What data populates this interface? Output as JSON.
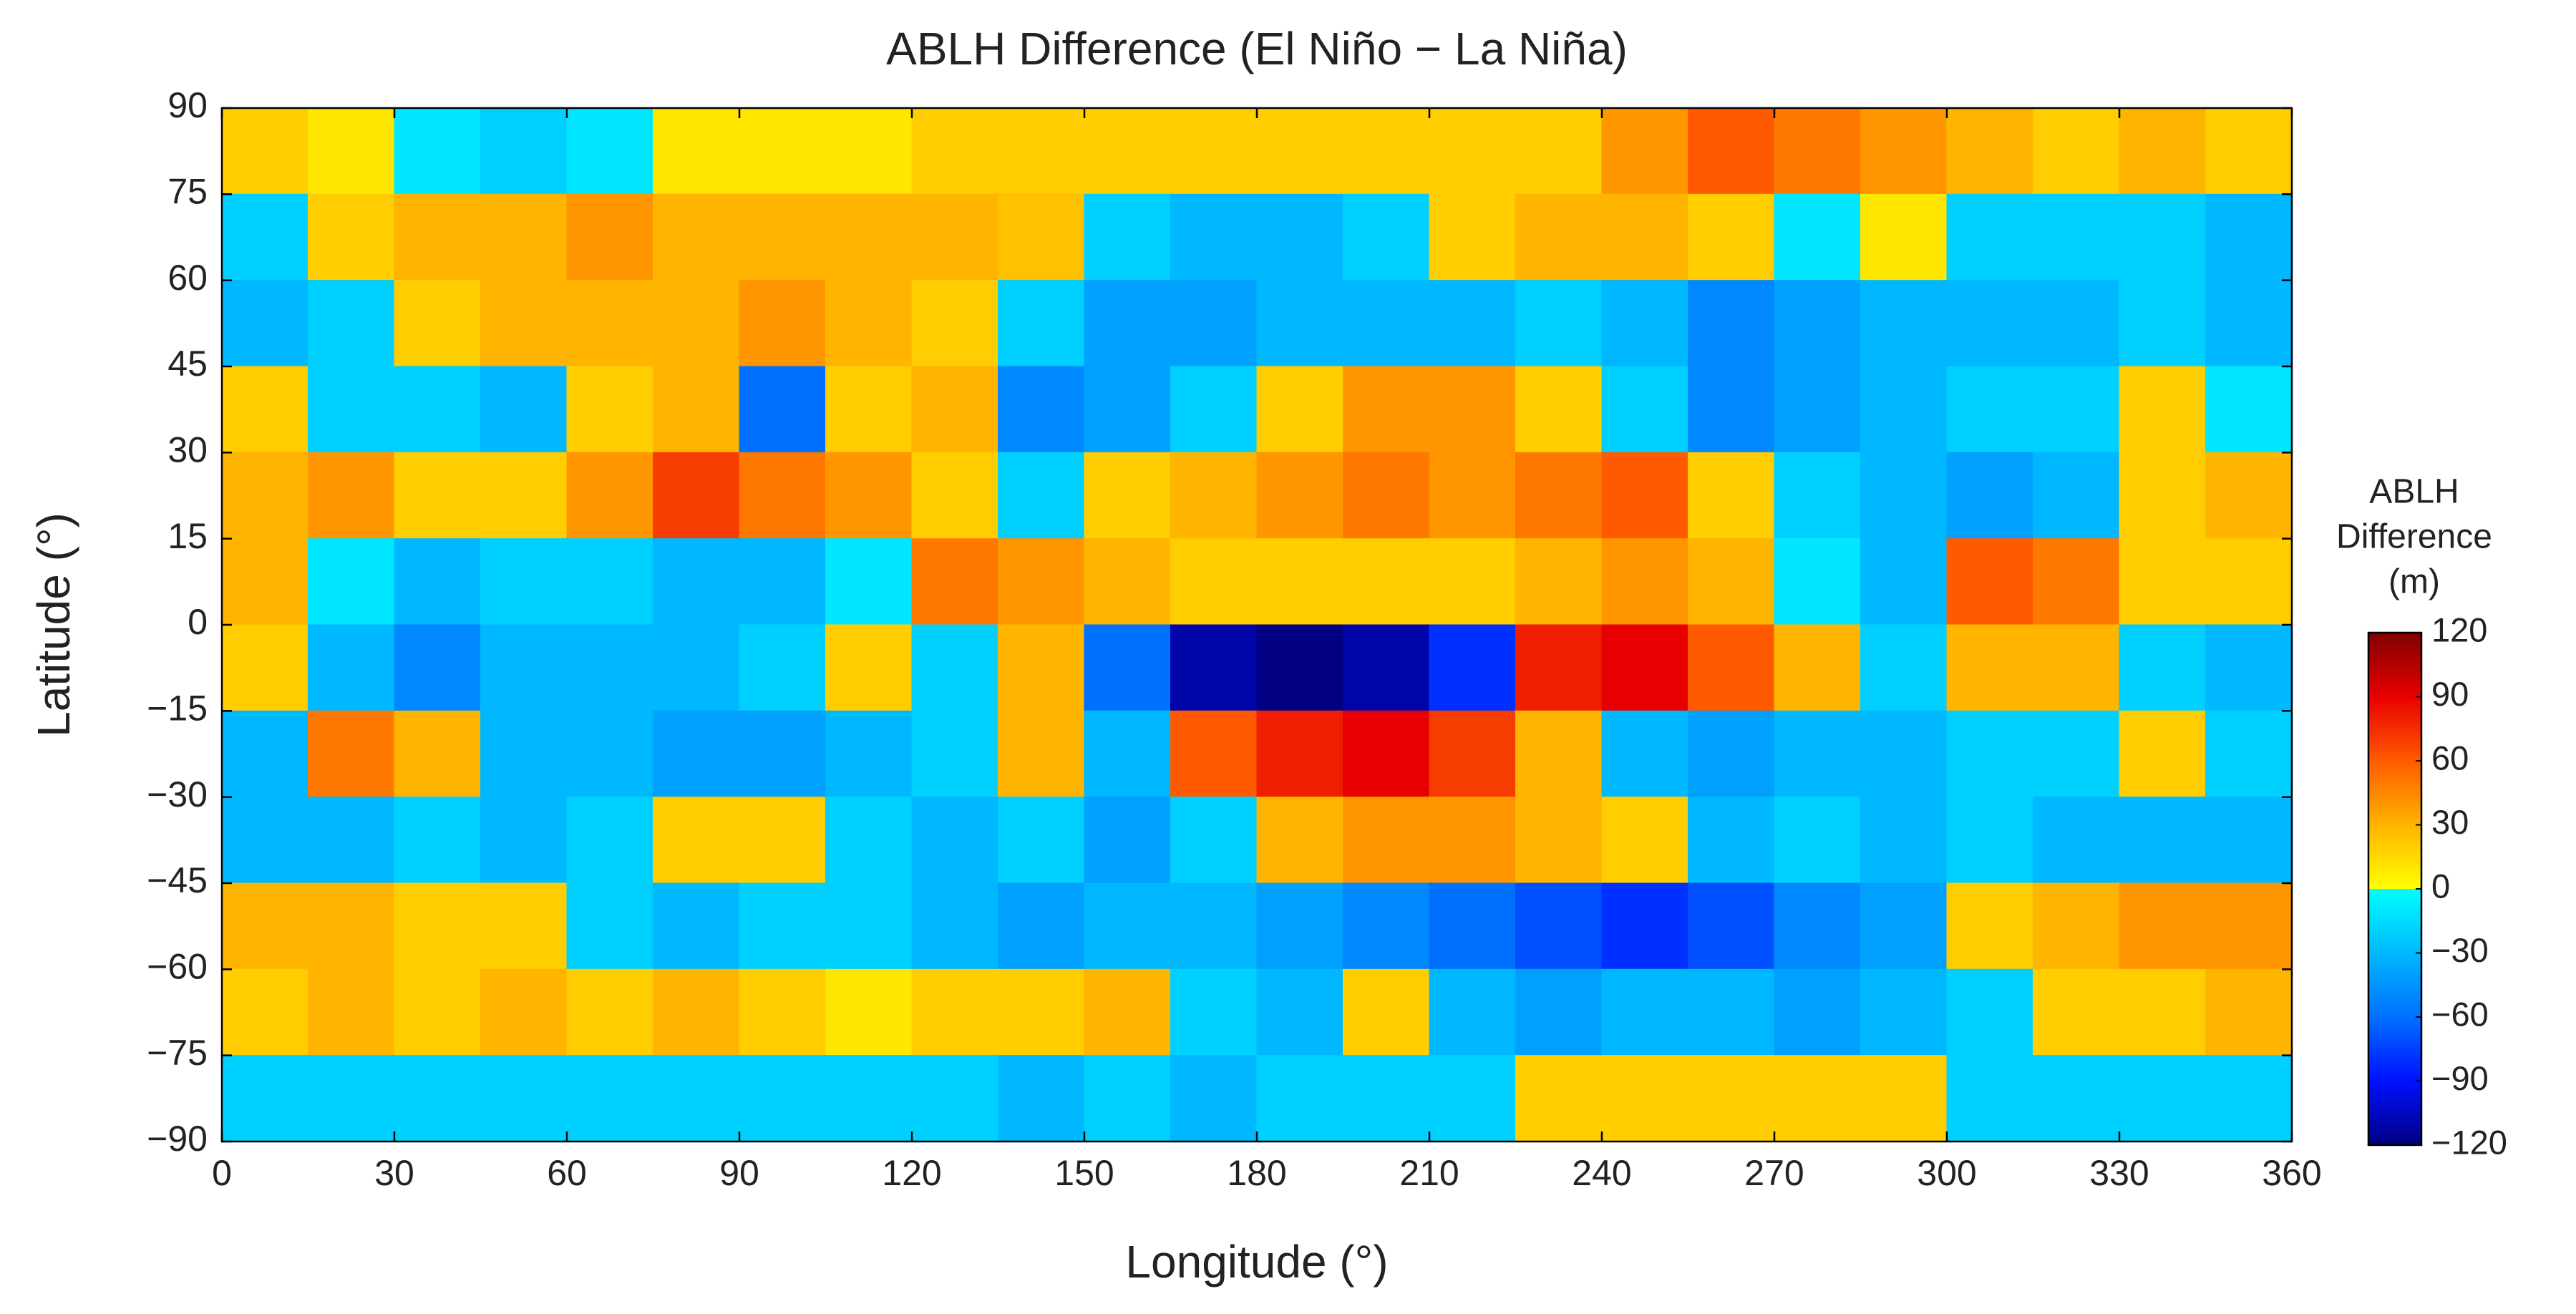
{
  "chart_data": {
    "type": "heatmap",
    "title": "ABLH Difference (El Niño − La Niña)",
    "x_label": "Longitude (°)",
    "y_label": "Latitude (°)",
    "colorbar_label": [
      "ABLH",
      "Difference",
      "(m)"
    ],
    "xlim": [
      0,
      360
    ],
    "ylim": [
      -90,
      90
    ],
    "xticks": [
      0,
      30,
      60,
      90,
      120,
      150,
      180,
      210,
      240,
      270,
      300,
      330,
      360
    ],
    "yticks": [
      90,
      75,
      60,
      45,
      30,
      15,
      0,
      {
        "value": -15,
        "label": "−15"
      },
      {
        "value": -30,
        "label": "−30"
      },
      {
        "value": -45,
        "label": "−45"
      },
      {
        "value": -60,
        "label": "−60"
      },
      {
        "value": -75,
        "label": "−75"
      },
      {
        "value": -90,
        "label": "−90"
      }
    ],
    "clim": [
      -120,
      120
    ],
    "cticks": [
      120,
      90,
      60,
      30,
      0,
      {
        "value": -30,
        "label": "−30"
      },
      {
        "value": -60,
        "label": "−60"
      },
      {
        "value": -90,
        "label": "−90"
      },
      {
        "value": -120,
        "label": "−120"
      }
    ],
    "colormap_below": [
      "#000080",
      "#0010ff",
      "#0070ff",
      "#00b8ff",
      "#00ffff"
    ],
    "colormap_above": [
      "#ffff00",
      "#ffb400",
      "#ff5a00",
      "#e80000",
      "#800000"
    ],
    "cell_size": 15,
    "x": [
      7.5,
      22.5,
      37.5,
      52.5,
      67.5,
      82.5,
      97.5,
      112.5,
      127.5,
      142.5,
      157.5,
      172.5,
      187.5,
      202.5,
      217.5,
      232.5,
      247.5,
      262.5,
      277.5,
      292.5,
      307.5,
      322.5,
      337.5,
      352.5
    ],
    "y": [
      82.5,
      67.5,
      52.5,
      37.5,
      22.5,
      7.5,
      -7.5,
      -22.5,
      -37.5,
      -52.5,
      -67.5,
      -82.5
    ],
    "z": [
      [
        20,
        10,
        -10,
        -20,
        -10,
        10,
        10,
        10,
        20,
        20,
        20,
        20,
        20,
        20,
        20,
        20,
        40,
        60,
        50,
        40,
        30,
        20,
        30,
        20
      ],
      [
        -20,
        20,
        30,
        30,
        40,
        30,
        30,
        30,
        30,
        25,
        -20,
        -30,
        -30,
        -20,
        20,
        30,
        30,
        20,
        -10,
        10,
        -20,
        -20,
        -20,
        -30
      ],
      [
        -30,
        -20,
        20,
        30,
        30,
        30,
        40,
        30,
        20,
        -20,
        -40,
        -40,
        -30,
        -30,
        -30,
        -20,
        -30,
        -50,
        -40,
        -30,
        -30,
        -30,
        -20,
        -30
      ],
      [
        20,
        -20,
        -20,
        -30,
        20,
        30,
        -60,
        20,
        30,
        -50,
        -40,
        -20,
        20,
        40,
        40,
        20,
        -20,
        -50,
        -40,
        -30,
        -20,
        -20,
        20,
        -10
      ],
      [
        30,
        40,
        20,
        20,
        40,
        70,
        50,
        40,
        20,
        -20,
        20,
        30,
        40,
        50,
        40,
        50,
        60,
        20,
        -20,
        -30,
        -40,
        -30,
        20,
        30
      ],
      [
        30,
        -10,
        -30,
        -20,
        -20,
        -30,
        -30,
        -10,
        50,
        40,
        30,
        20,
        20,
        20,
        20,
        30,
        40,
        30,
        -10,
        -30,
        60,
        50,
        20,
        20
      ],
      [
        20,
        -30,
        -50,
        -30,
        -30,
        -30,
        -20,
        20,
        -20,
        30,
        -60,
        -110,
        -120,
        -110,
        -80,
        80,
        90,
        60,
        30,
        -20,
        30,
        30,
        -20,
        -30
      ],
      [
        -30,
        50,
        30,
        -30,
        -30,
        -40,
        -40,
        -30,
        -20,
        30,
        -30,
        60,
        80,
        90,
        70,
        30,
        -30,
        -40,
        -30,
        -30,
        -20,
        -20,
        20,
        -20
      ],
      [
        -30,
        -30,
        -20,
        -30,
        -20,
        20,
        20,
        -20,
        -30,
        -20,
        -40,
        -20,
        30,
        40,
        40,
        30,
        20,
        -30,
        -20,
        -30,
        -20,
        -30,
        -30,
        -30
      ],
      [
        30,
        30,
        20,
        20,
        -20,
        -30,
        -20,
        -20,
        -30,
        -40,
        -30,
        -30,
        -40,
        -50,
        -60,
        -70,
        -80,
        -70,
        -50,
        -40,
        20,
        30,
        40,
        40
      ],
      [
        20,
        30,
        20,
        30,
        20,
        30,
        20,
        10,
        20,
        20,
        30,
        -20,
        -30,
        20,
        -30,
        -40,
        -30,
        -30,
        -40,
        -30,
        -20,
        20,
        20,
        30
      ],
      [
        -20,
        -20,
        -20,
        -20,
        -20,
        -20,
        -20,
        -20,
        -20,
        -30,
        -20,
        -30,
        -20,
        -20,
        -20,
        20,
        20,
        20,
        20,
        20,
        -20,
        -20,
        -20,
        -20
      ]
    ]
  }
}
